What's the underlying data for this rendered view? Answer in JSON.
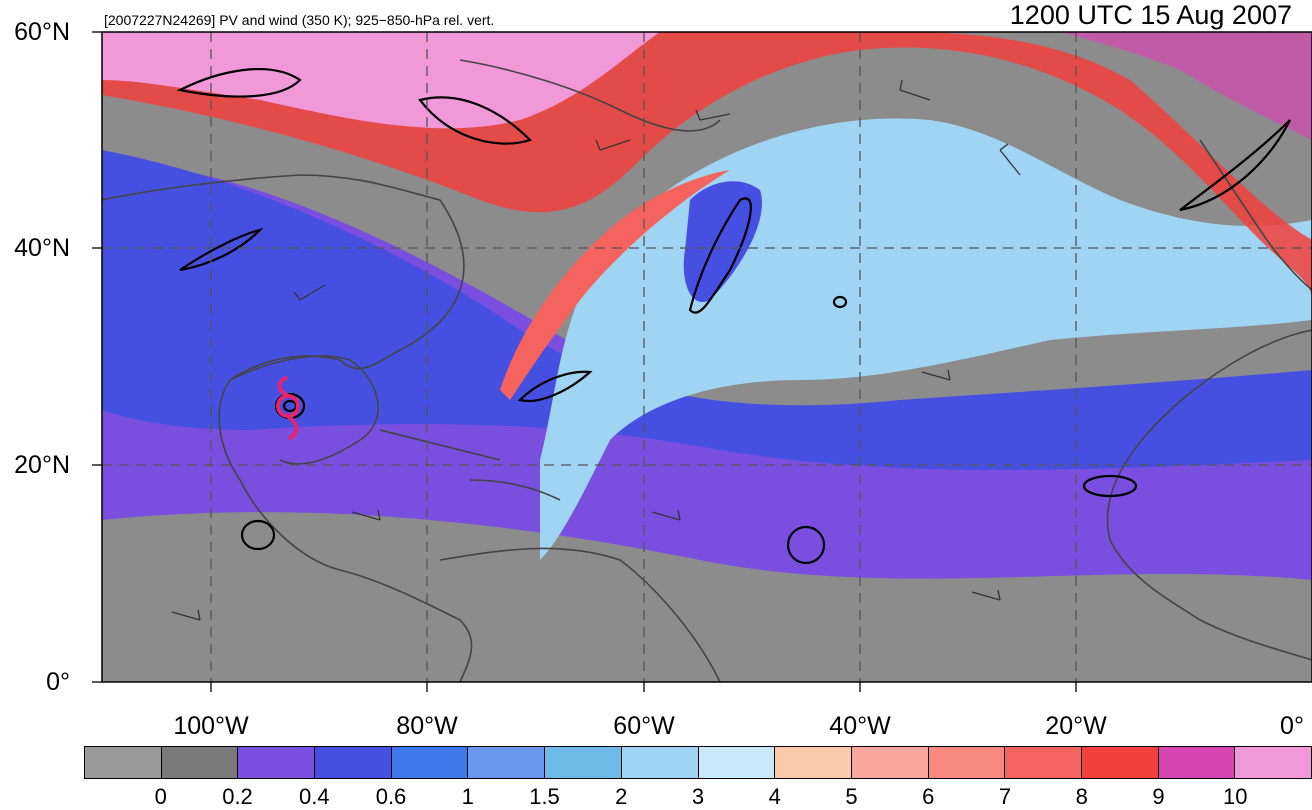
{
  "header": {
    "left_text": "[2007227N24269] PV and wind (350 K); 925−850-hPa rel. vert.",
    "right_text": "1200 UTC 15 Aug 2007"
  },
  "axes": {
    "lat_labels": [
      "60°N",
      "40°N",
      "20°N",
      "0°"
    ],
    "lon_labels": [
      "100°W",
      "80°W",
      "60°W",
      "40°W",
      "20°W",
      "0°"
    ]
  },
  "colorbar": {
    "labels": [
      "0",
      "0.2",
      "0.4",
      "0.6",
      "1",
      "1.5",
      "2",
      "3",
      "4",
      "5",
      "6",
      "7",
      "8",
      "9",
      "10"
    ],
    "colors": [
      "#9a9a9a",
      "#7a7a7a",
      "#7a4fe0",
      "#4650e0",
      "#3f78ea",
      "#6a98ee",
      "#6fbbe8",
      "#9fd4f2",
      "#c9e9fb",
      "#fbcaa8",
      "#f9a79d",
      "#f7897f",
      "#f5635e",
      "#f2403c",
      "#d646b2",
      "#f198d8"
    ]
  },
  "map": {
    "colors": {
      "pv_low_gray": "#8c8c8c",
      "pv_purple": "#7a4fe0",
      "pv_blue": "#4650e0",
      "pv_lightblue": "#9fd4f2",
      "pv_red": "#f2403c",
      "pv_pink": "#f198d8",
      "storm_symbol": "#e6246e",
      "vorticity_contour": "#000000",
      "coastline": "#444444"
    },
    "storm_symbol": "hurricane-symbol",
    "layers": [
      "potential-vorticity-shading",
      "wind-barbs",
      "relative-vorticity-contours",
      "coastlines",
      "graticule"
    ]
  }
}
